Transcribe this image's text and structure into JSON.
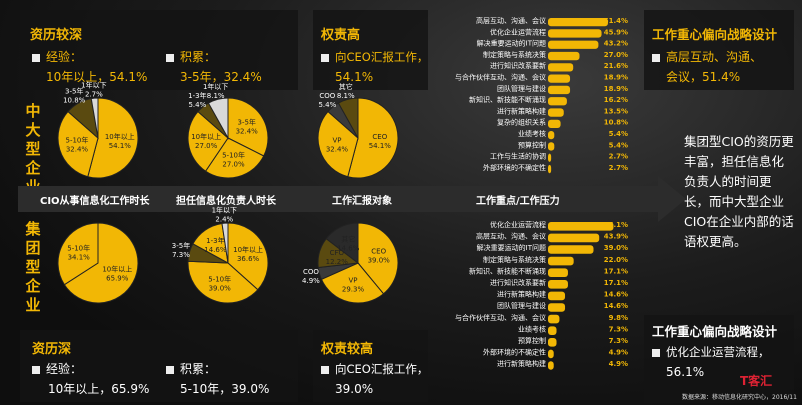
{
  "sections": {
    "top_label": "中大型企业",
    "bottom_label": "集团型企业"
  },
  "arrow_labels": [
    "CIO从事信息化工作时长",
    "担任信息化负责人时长",
    "工作汇报对象",
    "工作重点/工作压力"
  ],
  "top_left_panel": {
    "title": "资历较深",
    "item1_label": "经验：",
    "item1_value": "10年以上，54.1%",
    "item2_label": "积累：",
    "item2_value": "3-5年，32.4%"
  },
  "top_mid_panel": {
    "title": "权责高",
    "item_label": "向CEO汇报工作，",
    "item_value": "54.1%"
  },
  "top_right_panel": {
    "title": "工作重心偏向战略设计",
    "item_text": "高层互动、沟通、",
    "item_value": "会议，51.4%"
  },
  "bottom_left_panel": {
    "title": "资历深",
    "item1_label": "经验：",
    "item1_value": "10年以上，65.9%",
    "item2_label": "积累：",
    "item2_value": "5-10年，39.0%"
  },
  "bottom_mid_panel": {
    "title": "权责较高",
    "item_label": "向CEO汇报工作，",
    "item_value": "39.0%"
  },
  "bottom_right_panel": {
    "title": "工作重心偏向战略设计",
    "item_text": "优化企业运营流程，",
    "item_value": "56.1%"
  },
  "right_summary": "集团型CIO的资历更丰富，担任信息化负责人的时间更长，而中大型企业CIO在企业内部的话语权更高。",
  "source": "数据来源：移动信息化研究中心，2016/11",
  "watermark": "T客汇",
  "colors": {
    "accent": "#f2b705",
    "dark": "#3a3a3a",
    "mid": "#7a6a20",
    "text": "#ffffff"
  },
  "chart_data": [
    {
      "type": "pie",
      "title": "CIO从事信息化工作时长（中大型企业）",
      "slices": [
        {
          "label": "10年以上",
          "value": 54.1
        },
        {
          "label": "5-10年",
          "value": 32.4
        },
        {
          "label": "3-5年",
          "value": 10.8
        },
        {
          "label": "1年以下",
          "value": 2.7
        }
      ]
    },
    {
      "type": "pie",
      "title": "担任信息化负责人时长（中大型企业）",
      "slices": [
        {
          "label": "3-5年",
          "value": 32.4
        },
        {
          "label": "5-10年",
          "value": 27.0
        },
        {
          "label": "10年以上",
          "value": 27.0
        },
        {
          "label": "1-3年",
          "value": 5.4
        },
        {
          "label": "1年以下",
          "value": 8.1
        }
      ]
    },
    {
      "type": "pie",
      "title": "工作汇报对象（中大型企业）",
      "slices": [
        {
          "label": "CEO",
          "value": 54.1
        },
        {
          "label": "VP",
          "value": 32.4
        },
        {
          "label": "COO",
          "value": 5.4
        },
        {
          "label": "其它",
          "value": 8.1
        }
      ]
    },
    {
      "type": "pie",
      "title": "CIO从事信息化工作时长（集团型企业）",
      "slices": [
        {
          "label": "10年以上",
          "value": 65.9
        },
        {
          "label": "5-10年",
          "value": 34.1
        }
      ]
    },
    {
      "type": "pie",
      "title": "担任信息化负责人时长（集团型企业）",
      "slices": [
        {
          "label": "10年以上",
          "value": 36.6
        },
        {
          "label": "5-10年",
          "value": 39.0
        },
        {
          "label": "3-5年",
          "value": 7.3
        },
        {
          "label": "1-3年",
          "value": 14.6
        },
        {
          "label": "1年以下",
          "value": 2.4
        }
      ]
    },
    {
      "type": "pie",
      "title": "工作汇报对象（集团型企业）",
      "slices": [
        {
          "label": "CEO",
          "value": 39.0
        },
        {
          "label": "VP",
          "value": 29.3
        },
        {
          "label": "COO",
          "value": 4.9
        },
        {
          "label": "CFO",
          "value": 12.2
        },
        {
          "label": "其它",
          "value": 14.6
        }
      ]
    },
    {
      "type": "bar",
      "title": "工作重点/工作压力（中大型企业）",
      "categories": [
        "高层互动、沟通、会议",
        "优化企业运营流程",
        "解决重要运动的IT问题",
        "制定策略与系统决策",
        "进行知识改系要新",
        "与合作伙伴互动、沟通、会议",
        "团队管理与建设",
        "新知识、新技能不断涌现",
        "进行新策略构建",
        "复杂的组织关系",
        "业绩考核",
        "预算控制",
        "工作与生活的协调",
        "外部环境的不确定性"
      ],
      "values": [
        51.4,
        45.9,
        43.2,
        27.0,
        21.6,
        18.9,
        18.9,
        16.2,
        13.5,
        10.8,
        5.4,
        5.4,
        2.7,
        2.7
      ],
      "xlim": [
        0,
        60
      ]
    },
    {
      "type": "bar",
      "title": "工作重点/工作压力（集团型企业）",
      "categories": [
        "优化企业运营流程",
        "高层互动、沟通、会议",
        "解决重要运动的IT问题",
        "制定策略与系统决策",
        "新知识、新技能不断涌现",
        "进行知识改系要新",
        "进行新策略构建",
        "团队管理与建设",
        "与合作伙伴互动、沟通、会议",
        "业绩考核",
        "预算控制",
        "外部环境的不确定性",
        "进行新策略构建"
      ],
      "values": [
        56.1,
        43.9,
        39.0,
        22.0,
        17.1,
        17.1,
        14.6,
        14.6,
        9.8,
        7.3,
        7.3,
        4.9,
        4.9
      ],
      "xlim": [
        0,
        60
      ]
    }
  ]
}
